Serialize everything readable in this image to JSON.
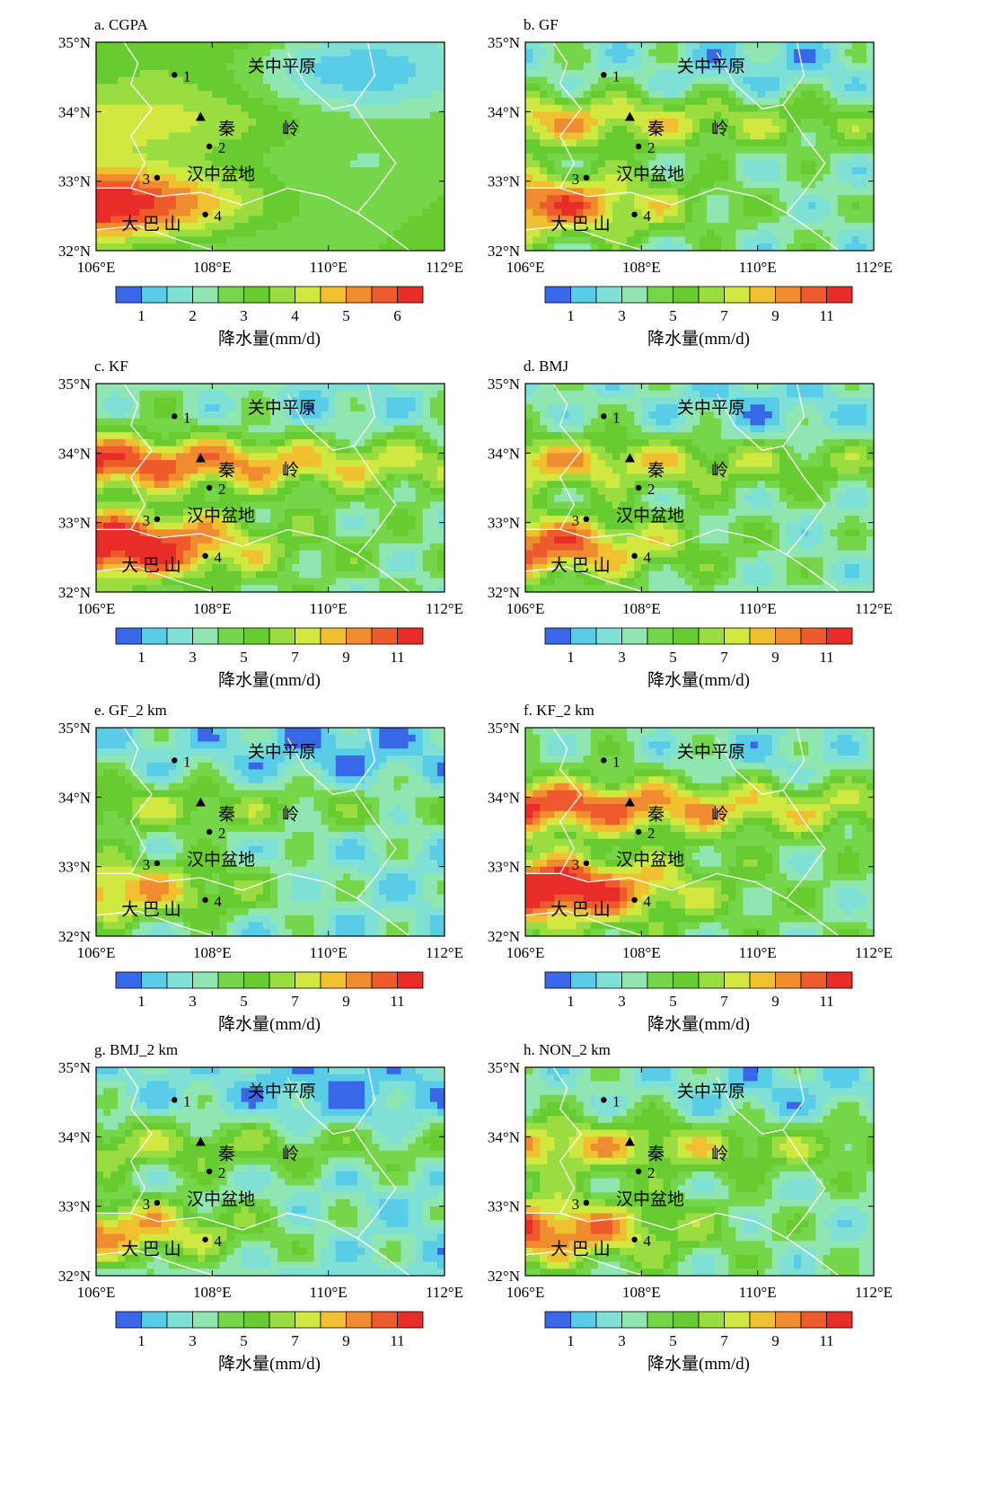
{
  "panels": [
    {
      "title": "a. CGPA",
      "colorbar_labels": [
        "1",
        "2",
        "3",
        "4",
        "5",
        "6"
      ],
      "pattern": "smooth"
    },
    {
      "title": "b. GF",
      "colorbar_labels": [
        "1",
        "3",
        "5",
        "7",
        "9",
        "11"
      ],
      "pattern": "medium"
    },
    {
      "title": "c. KF",
      "colorbar_labels": [
        "1",
        "3",
        "5",
        "7",
        "9",
        "11"
      ],
      "pattern": "strong"
    },
    {
      "title": "d. BMJ",
      "colorbar_labels": [
        "1",
        "3",
        "5",
        "7",
        "9",
        "11"
      ],
      "pattern": "medium"
    },
    {
      "title": "e. GF_2 km",
      "colorbar_labels": [
        "1",
        "3",
        "5",
        "7",
        "9",
        "11"
      ],
      "pattern": "weak"
    },
    {
      "title": "f. KF_2 km",
      "colorbar_labels": [
        "1",
        "3",
        "5",
        "7",
        "9",
        "11"
      ],
      "pattern": "strong"
    },
    {
      "title": "g. BMJ_2  km",
      "colorbar_labels": [
        "1",
        "3",
        "5",
        "7",
        "9",
        "11"
      ],
      "pattern": "weak"
    },
    {
      "title": "h. NON_2 km",
      "colorbar_labels": [
        "1",
        "3",
        "5",
        "7",
        "9",
        "11"
      ],
      "pattern": "medium"
    }
  ],
  "axes": {
    "lat_labels": [
      "35°N",
      "34°N",
      "33°N",
      "32°N"
    ],
    "lon_labels": [
      "106°E",
      "108°E",
      "110°E",
      "112°E"
    ],
    "lat_range": [
      32,
      35
    ],
    "lon_range": [
      106,
      112
    ]
  },
  "colorbar_title": "降水量(mm/d)",
  "colorbar_colors": [
    "#3868e8",
    "#59cde8",
    "#7fe0d6",
    "#8fe6b0",
    "#76d64a",
    "#66cc30",
    "#9add40",
    "#d0e840",
    "#f0c030",
    "#f08c30",
    "#ef5a2c",
    "#e82c28"
  ],
  "places": [
    {
      "label": "关中平原",
      "lon": 109.2,
      "lat": 34.65
    },
    {
      "label": "秦",
      "lon": 108.25,
      "lat": 33.75
    },
    {
      "label": "岭",
      "lon": 109.35,
      "lat": 33.75
    },
    {
      "label": "汉中盆地",
      "lon": 108.15,
      "lat": 33.1
    },
    {
      "label": "大 巴 山",
      "lon": 106.95,
      "lat": 32.38
    }
  ],
  "stations": [
    {
      "label": "1",
      "lon": 107.35,
      "lat": 34.53
    },
    {
      "label": "2",
      "lon": 107.95,
      "lat": 33.5
    },
    {
      "label": "3",
      "lon": 107.05,
      "lat": 33.05
    },
    {
      "label": "4",
      "lon": 107.88,
      "lat": 32.52
    }
  ],
  "peak_marker": {
    "lon": 107.8,
    "lat": 33.92
  }
}
